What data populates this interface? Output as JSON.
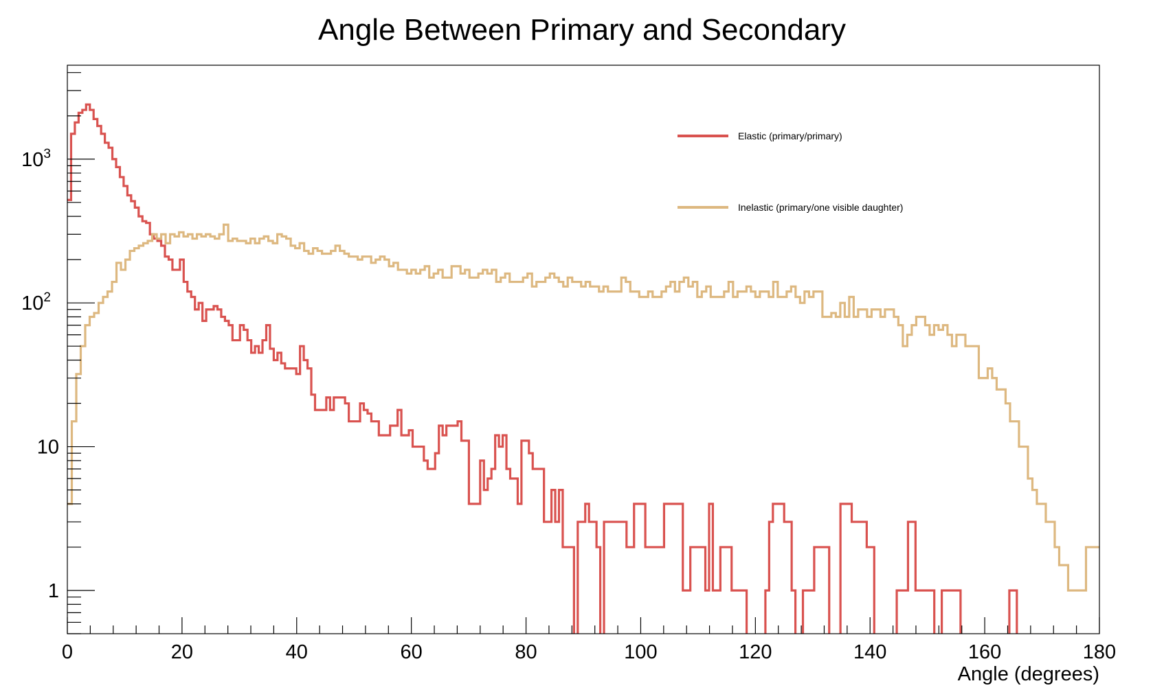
{
  "colors": {
    "elastic": "#d9524f",
    "inelastic": "#ddb880",
    "axis": "#000000"
  },
  "chart_data": {
    "type": "line",
    "subtype": "histogram-step",
    "title": "Angle Between Primary and Secondary",
    "xlabel": "Angle (degrees)",
    "ylabel": "",
    "xlim": [
      0,
      180
    ],
    "ylim": [
      0.5,
      4500
    ],
    "yscale": "log",
    "grid": false,
    "legend_position": "top-right",
    "x_ticks": [
      "0",
      "20",
      "40",
      "60",
      "80",
      "100",
      "120",
      "140",
      "160",
      "180"
    ],
    "y_ticks": [
      {
        "value": 1,
        "label": "1"
      },
      {
        "value": 10,
        "label": "10"
      },
      {
        "value": 100,
        "label": "10",
        "sup": "2"
      },
      {
        "value": 1000,
        "label": "10",
        "sup": "3"
      }
    ],
    "bin_width": 1,
    "series": [
      {
        "name": "Elastic (primary/primary)",
        "color": "#d9524f",
        "values": [
          520,
          1500,
          1800,
          2100,
          2200,
          2400,
          2200,
          1900,
          1700,
          1500,
          1300,
          1200,
          1000,
          880,
          750,
          650,
          560,
          510,
          460,
          400,
          370,
          360,
          300,
          280,
          270,
          250,
          210,
          200,
          170,
          170,
          200,
          140,
          120,
          110,
          90,
          100,
          75,
          90,
          90,
          95,
          90,
          80,
          75,
          70,
          55,
          55,
          70,
          65,
          55,
          45,
          50,
          45,
          55,
          70,
          48,
          40,
          45,
          38,
          35,
          35,
          35,
          32,
          50,
          40,
          35,
          23,
          18,
          18,
          18,
          22,
          18,
          22,
          22,
          22,
          20,
          15,
          15,
          15,
          20,
          18,
          17,
          15,
          15,
          12,
          12,
          12,
          14,
          14,
          18,
          12,
          12,
          13,
          10,
          10,
          10,
          8,
          7,
          7,
          9,
          14,
          12,
          14,
          14,
          14,
          15,
          11,
          11,
          4,
          4,
          4,
          8,
          5,
          6,
          7,
          12,
          10,
          12,
          7,
          6,
          6,
          4,
          11,
          11,
          9,
          7,
          7,
          7,
          3,
          3,
          5,
          3,
          5,
          2,
          2,
          2,
          0.4,
          3,
          3,
          4,
          3,
          3,
          2,
          0.4,
          3,
          3,
          3,
          3,
          3,
          3,
          2,
          2,
          4,
          4,
          4,
          2,
          2,
          2,
          2,
          2,
          4,
          4,
          4,
          4,
          4,
          1,
          1,
          2,
          2,
          2,
          2,
          1,
          4,
          1,
          1,
          2,
          2,
          2,
          1,
          1,
          1,
          1,
          0.4,
          0.4,
          0.4,
          0.4,
          0.4,
          1,
          3,
          4,
          4,
          4,
          3,
          3,
          1,
          0.4,
          0.4,
          1,
          1,
          1,
          2,
          2,
          2,
          2,
          0.4,
          0.4,
          0.4,
          4,
          4,
          4,
          3,
          3,
          3,
          3,
          2,
          2,
          0.4,
          0.4,
          0.4,
          0.4,
          0.4,
          0.4,
          1,
          1,
          1,
          3,
          3,
          1,
          1,
          1,
          1,
          1,
          0.4,
          0.4,
          1,
          1,
          1,
          1,
          1,
          0.4,
          0.4,
          0.4,
          0.4,
          0.4,
          0.4,
          0.4,
          0.4,
          0.4,
          0.4,
          0.4,
          0.4,
          0.4,
          1,
          1,
          0.4,
          0.4,
          0.4,
          0.4,
          0.4,
          0.4,
          0.4,
          0.4,
          0.4,
          0.4,
          0.4,
          0.4,
          0.4,
          0.4,
          0.4,
          0.4,
          0.4,
          0.4,
          0.4,
          0.4,
          0.4,
          0.4
        ]
      },
      {
        "name": "Inelastic (primary/one visible daughter)",
        "color": "#ddb880",
        "values": [
          4,
          15,
          32,
          50,
          70,
          80,
          85,
          100,
          110,
          120,
          140,
          190,
          170,
          200,
          230,
          240,
          250,
          260,
          270,
          300,
          280,
          300,
          260,
          300,
          290,
          310,
          290,
          300,
          280,
          300,
          290,
          300,
          290,
          280,
          300,
          350,
          270,
          280,
          270,
          270,
          260,
          280,
          260,
          280,
          290,
          270,
          260,
          300,
          290,
          280,
          250,
          240,
          260,
          230,
          220,
          240,
          230,
          220,
          220,
          230,
          250,
          230,
          220,
          210,
          210,
          200,
          210,
          210,
          190,
          200,
          210,
          200,
          180,
          190,
          170,
          170,
          160,
          170,
          160,
          170,
          180,
          150,
          160,
          170,
          150,
          150,
          180,
          180,
          160,
          170,
          150,
          150,
          160,
          170,
          160,
          170,
          140,
          150,
          160,
          140,
          140,
          140,
          150,
          160,
          130,
          140,
          140,
          150,
          160,
          150,
          140,
          130,
          150,
          140,
          140,
          130,
          140,
          130,
          130,
          120,
          130,
          120,
          120,
          120,
          150,
          140,
          120,
          120,
          110,
          110,
          120,
          110,
          110,
          120,
          130,
          140,
          120,
          140,
          150,
          130,
          140,
          110,
          120,
          130,
          110,
          110,
          110,
          120,
          140,
          110,
          120,
          120,
          130,
          120,
          110,
          120,
          120,
          110,
          140,
          110,
          110,
          120,
          130,
          110,
          100,
          120,
          110,
          120,
          120,
          80,
          80,
          85,
          80,
          100,
          80,
          110,
          80,
          90,
          90,
          80,
          90,
          90,
          80,
          90,
          90,
          80,
          70,
          50,
          60,
          70,
          80,
          80,
          70,
          60,
          70,
          65,
          70,
          60,
          50,
          60,
          60,
          50,
          50,
          50,
          30,
          30,
          35,
          30,
          25,
          25,
          20,
          15,
          15,
          10,
          10,
          6,
          5,
          4,
          4,
          3,
          3,
          2,
          1.5,
          1.5,
          1,
          1,
          1,
          1,
          2,
          2,
          2
        ]
      }
    ]
  }
}
